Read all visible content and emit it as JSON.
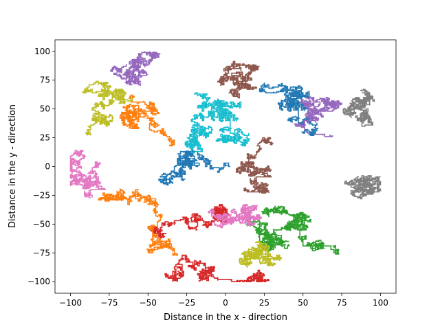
{
  "chart_data": {
    "type": "line",
    "title": "",
    "xlabel": "Distance in the x - direction",
    "ylabel": "Distance in the y - direction",
    "xlim": [
      -110,
      110
    ],
    "ylim": [
      -110,
      110
    ],
    "x_ticks": [
      "−100",
      "−75",
      "−50",
      "−25",
      "0",
      "25",
      "50",
      "75",
      "100"
    ],
    "y_ticks": [
      "−100",
      "−75",
      "−50",
      "−25",
      "0",
      "25",
      "50",
      "75",
      "100"
    ],
    "x_tick_values": [
      -100,
      -75,
      -50,
      -25,
      0,
      25,
      50,
      75,
      100
    ],
    "y_tick_values": [
      -100,
      -75,
      -50,
      -25,
      0,
      25,
      50,
      75,
      100
    ],
    "grid": false,
    "legend": "none",
    "walk_bounds": {
      "radius": 100,
      "steps_per_walk": 1200,
      "step_size": 1
    },
    "palette": [
      "#1f77b4",
      "#ff7f0e",
      "#2ca02c",
      "#d62728",
      "#9467bd",
      "#8c564b",
      "#e377c2",
      "#7f7f7f",
      "#bcbd22",
      "#17becf"
    ]
  }
}
